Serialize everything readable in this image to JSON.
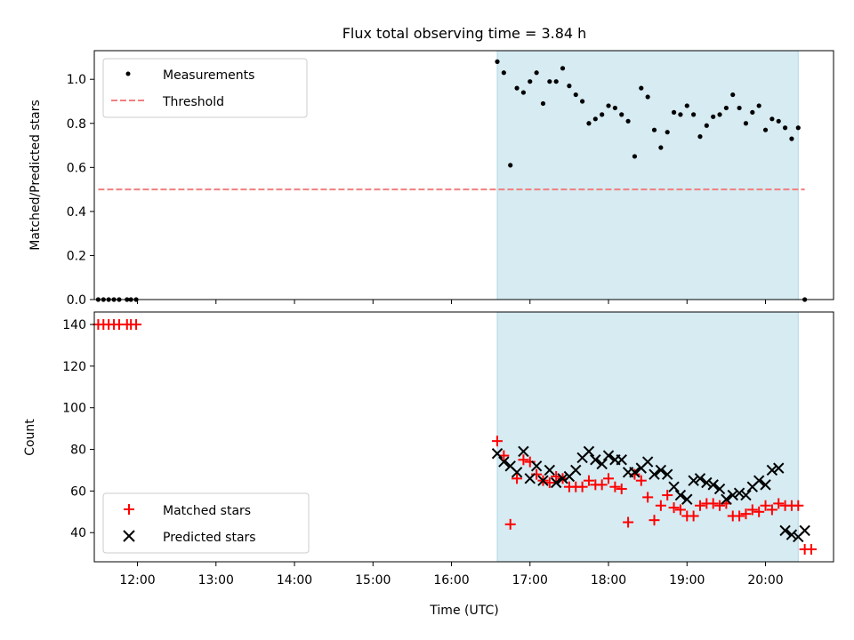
{
  "title": "Flux total observing time = 3.84 h",
  "chart_data": [
    {
      "type": "scatter",
      "panel": "top",
      "ylabel": "Matched/Predicted stars",
      "xlim": [
        "11:27",
        "20:52"
      ],
      "ylim": [
        0,
        1.13
      ],
      "yticks": [
        0.0,
        0.2,
        0.4,
        0.6,
        0.8,
        1.0
      ],
      "ytick_labels": [
        "0.0",
        "0.2",
        "0.4",
        "0.6",
        "0.8",
        "1.0"
      ],
      "shaded_interval": [
        "16:35",
        "20:25"
      ],
      "shade_color": "#add8e6",
      "legend_position": "top-left",
      "legend": [
        "Measurements",
        "Threshold"
      ],
      "threshold": {
        "name": "Threshold",
        "y": 0.5,
        "x_range": [
          "11:30",
          "20:30"
        ],
        "color": "#f08080",
        "style": "dashed"
      },
      "measurements": {
        "name": "Measurements",
        "color": "#000000",
        "x": [
          "11:30",
          "11:34",
          "11:38",
          "11:42",
          "11:46",
          "11:52",
          "11:55",
          "11:59",
          "16:35",
          "16:40",
          "16:45",
          "16:50",
          "16:55",
          "17:00",
          "17:05",
          "17:10",
          "17:15",
          "17:20",
          "17:25",
          "17:30",
          "17:35",
          "17:40",
          "17:45",
          "17:50",
          "17:55",
          "18:00",
          "18:05",
          "18:10",
          "18:15",
          "18:20",
          "18:25",
          "18:30",
          "18:35",
          "18:40",
          "18:45",
          "18:50",
          "18:55",
          "19:00",
          "19:05",
          "19:10",
          "19:15",
          "19:20",
          "19:25",
          "19:30",
          "19:35",
          "19:40",
          "19:45",
          "19:50",
          "19:55",
          "20:00",
          "20:05",
          "20:10",
          "20:15",
          "20:20",
          "20:25",
          "20:30"
        ],
        "y": [
          0,
          0,
          0,
          0,
          0,
          0,
          0,
          0,
          1.08,
          1.03,
          0.61,
          0.96,
          0.94,
          0.99,
          1.03,
          0.89,
          0.99,
          0.99,
          1.05,
          0.97,
          0.93,
          0.9,
          0.8,
          0.82,
          0.84,
          0.88,
          0.87,
          0.84,
          0.81,
          0.65,
          0.96,
          0.92,
          0.77,
          0.69,
          0.76,
          0.85,
          0.84,
          0.88,
          0.84,
          0.74,
          0.79,
          0.83,
          0.84,
          0.87,
          0.93,
          0.87,
          0.8,
          0.85,
          0.88,
          0.77,
          0.82,
          0.81,
          0.78,
          0.73,
          0.78,
          0
        ]
      }
    },
    {
      "type": "scatter",
      "panel": "bottom",
      "xlabel": "Time (UTC)",
      "ylabel": "Count",
      "xlim": [
        "11:27",
        "20:52"
      ],
      "ylim": [
        26,
        146
      ],
      "yticks": [
        40,
        60,
        80,
        100,
        120,
        140
      ],
      "xtick_labels": [
        "12:00",
        "13:00",
        "14:00",
        "15:00",
        "16:00",
        "17:00",
        "18:00",
        "19:00",
        "20:00"
      ],
      "shaded_interval": [
        "16:35",
        "20:25"
      ],
      "shade_color": "#add8e6",
      "legend_position": "bottom-left",
      "legend": [
        "Matched stars",
        "Predicted stars"
      ],
      "series": [
        {
          "name": "Matched stars",
          "marker": "plus",
          "color": "#ff0000",
          "x": [
            "11:30",
            "11:34",
            "11:38",
            "11:42",
            "11:46",
            "11:52",
            "11:55",
            "11:59",
            "16:35",
            "16:40",
            "16:45",
            "16:50",
            "16:55",
            "17:00",
            "17:05",
            "17:10",
            "17:15",
            "17:20",
            "17:25",
            "17:30",
            "17:35",
            "17:40",
            "17:45",
            "17:50",
            "17:55",
            "18:00",
            "18:05",
            "18:10",
            "18:15",
            "18:20",
            "18:25",
            "18:30",
            "18:35",
            "18:40",
            "18:45",
            "18:50",
            "18:55",
            "19:00",
            "19:05",
            "19:10",
            "19:15",
            "19:20",
            "19:25",
            "19:30",
            "19:35",
            "19:40",
            "19:45",
            "19:50",
            "19:55",
            "20:00",
            "20:05",
            "20:10",
            "20:15",
            "20:20",
            "20:25",
            "20:30",
            "20:35"
          ],
          "y": [
            140,
            140,
            140,
            140,
            140,
            140,
            140,
            140,
            84,
            77,
            44,
            66,
            75,
            74,
            68,
            65,
            64,
            67,
            66,
            62,
            62,
            62,
            65,
            63,
            63,
            66,
            62,
            61,
            45,
            68,
            65,
            57,
            46,
            53,
            58,
            52,
            51,
            48,
            48,
            53,
            54,
            54,
            53,
            54,
            48,
            48,
            49,
            51,
            50,
            53,
            51,
            54,
            53,
            53,
            53,
            32,
            32
          ]
        },
        {
          "name": "Predicted stars",
          "marker": "x",
          "color": "#000000",
          "x": [
            "16:35",
            "16:40",
            "16:45",
            "16:50",
            "16:55",
            "17:00",
            "17:05",
            "17:10",
            "17:15",
            "17:20",
            "17:25",
            "17:30",
            "17:35",
            "17:40",
            "17:45",
            "17:50",
            "17:55",
            "18:00",
            "18:05",
            "18:10",
            "18:15",
            "18:20",
            "18:25",
            "18:30",
            "18:35",
            "18:40",
            "18:45",
            "18:50",
            "18:55",
            "19:00",
            "19:05",
            "19:10",
            "19:15",
            "19:20",
            "19:25",
            "19:30",
            "19:35",
            "19:40",
            "19:45",
            "19:50",
            "19:55",
            "20:00",
            "20:05",
            "20:10",
            "20:15",
            "20:20",
            "20:25",
            "20:30"
          ],
          "y": [
            78,
            74,
            72,
            69,
            79,
            66,
            72,
            65,
            70,
            64,
            66,
            67,
            70,
            76,
            79,
            75,
            73,
            77,
            75,
            75,
            69,
            69,
            71,
            74,
            68,
            70,
            68,
            62,
            58,
            56,
            65,
            66,
            64,
            63,
            61,
            56,
            58,
            59,
            58,
            62,
            65,
            63,
            70,
            71,
            41,
            39,
            38,
            41
          ]
        }
      ]
    }
  ]
}
